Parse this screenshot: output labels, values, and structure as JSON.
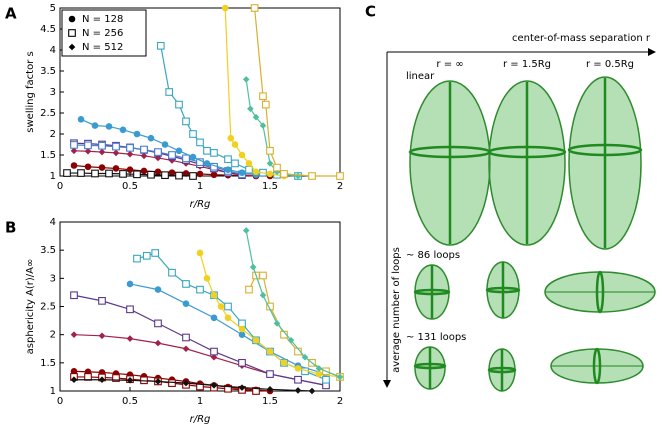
{
  "chart_data": [
    {
      "type": "line",
      "panel": "A",
      "ylabel": "swelling factor s",
      "xlabel": "r/Rg",
      "xlim": [
        0,
        2
      ],
      "xticks": [
        0,
        0.5,
        1,
        1.5,
        2
      ],
      "ylim": [
        1,
        5
      ],
      "yticks": [
        1,
        1.5,
        2,
        2.5,
        3,
        3.5,
        4,
        4.5,
        5
      ],
      "legend": [
        {
          "label": "N = 128",
          "marker": "circle"
        },
        {
          "label": "N = 256",
          "marker": "square"
        },
        {
          "label": "N = 512",
          "marker": "diamond"
        }
      ],
      "series": [
        {
          "color": "#8b0000",
          "marker": "circle",
          "x": [
            0.1,
            0.2,
            0.3,
            0.4,
            0.5,
            0.6,
            0.7,
            0.8,
            0.9,
            1.0,
            1.1,
            1.2,
            1.3,
            1.4,
            1.5
          ],
          "values": [
            1.25,
            1.22,
            1.2,
            1.18,
            1.15,
            1.12,
            1.1,
            1.08,
            1.06,
            1.05,
            1.03,
            1.02,
            1.01,
            1.0,
            1.0
          ]
        },
        {
          "color": "#111111",
          "marker": "square",
          "x": [
            0.05,
            0.15,
            0.25,
            0.35,
            0.45,
            0.55,
            0.65,
            0.75,
            0.85,
            0.95
          ],
          "values": [
            1.07,
            1.07,
            1.06,
            1.06,
            1.05,
            1.04,
            1.03,
            1.02,
            1.01,
            1.0
          ]
        },
        {
          "color": "#a0224a",
          "marker": "diamond",
          "x": [
            0.1,
            0.2,
            0.3,
            0.4,
            0.5,
            0.6,
            0.7,
            0.8,
            0.9,
            1.0,
            1.1,
            1.2,
            1.3,
            1.4
          ],
          "values": [
            1.6,
            1.59,
            1.57,
            1.55,
            1.52,
            1.48,
            1.43,
            1.37,
            1.3,
            1.23,
            1.15,
            1.08,
            1.03,
            1.0
          ]
        },
        {
          "color": "#5b3a8c",
          "marker": "square",
          "x": [
            0.1,
            0.2,
            0.3,
            0.4,
            0.5,
            0.6,
            0.7,
            0.8,
            0.9,
            1.0,
            1.1,
            1.2,
            1.3
          ],
          "values": [
            1.78,
            1.77,
            1.75,
            1.72,
            1.68,
            1.62,
            1.55,
            1.47,
            1.38,
            1.28,
            1.18,
            1.08,
            1.02
          ]
        },
        {
          "color": "#4a7fd0",
          "marker": "square",
          "x": [
            0.1,
            0.2,
            0.3,
            0.4,
            0.5,
            0.6,
            0.7,
            0.8,
            0.9,
            1.0,
            1.1,
            1.2,
            1.3
          ],
          "values": [
            1.74,
            1.73,
            1.72,
            1.7,
            1.67,
            1.63,
            1.57,
            1.5,
            1.42,
            1.33,
            1.22,
            1.12,
            1.04
          ]
        },
        {
          "color": "#3a9bd0",
          "marker": "circle",
          "x": [
            0.15,
            0.25,
            0.35,
            0.45,
            0.55,
            0.65,
            0.75,
            0.85,
            0.95,
            1.05,
            1.2,
            1.3,
            1.4
          ],
          "values": [
            2.35,
            2.2,
            2.18,
            2.1,
            2.0,
            1.9,
            1.75,
            1.6,
            1.45,
            1.3,
            1.15,
            1.08,
            1.03
          ]
        },
        {
          "color": "#3aa6c0",
          "marker": "square",
          "x": [
            0.72,
            0.78,
            0.85,
            0.9,
            0.95,
            1.0,
            1.05,
            1.1,
            1.2,
            1.25,
            1.35,
            1.45,
            1.55,
            1.7
          ],
          "values": [
            4.1,
            3.0,
            2.7,
            2.3,
            2.0,
            1.8,
            1.6,
            1.55,
            1.4,
            1.3,
            1.15,
            1.08,
            1.03,
            1.0
          ]
        },
        {
          "color": "#f0d020",
          "marker": "circle",
          "x": [
            1.18,
            1.22,
            1.25,
            1.3,
            1.35,
            1.4,
            1.5,
            1.6
          ],
          "values": [
            5,
            1.9,
            1.75,
            1.5,
            1.3,
            1.1,
            1.05,
            1.0
          ]
        },
        {
          "color": "#4fbf9f",
          "marker": "diamond",
          "x": [
            1.33,
            1.36,
            1.4,
            1.45,
            1.5,
            1.55,
            1.7
          ],
          "values": [
            3.3,
            2.6,
            2.4,
            2.2,
            1.3,
            1.1,
            1.0
          ]
        },
        {
          "color": "#d8b030",
          "marker": "square",
          "x": [
            1.39,
            1.45,
            1.47,
            1.5,
            1.55,
            1.6,
            1.8,
            2.0
          ],
          "values": [
            5,
            2.9,
            2.7,
            1.6,
            1.2,
            1.05,
            1.0,
            1.0
          ]
        }
      ]
    },
    {
      "type": "line",
      "panel": "B",
      "ylabel": "asphericity A(r)/A∞",
      "xlabel": "r/Rg",
      "xlim": [
        0,
        2
      ],
      "xticks": [
        0,
        0.5,
        1,
        1.5,
        2
      ],
      "ylim": [
        1,
        4
      ],
      "yticks": [
        1,
        1.5,
        2,
        2.5,
        3,
        3.5,
        4
      ],
      "series": [
        {
          "color": "#8b0000",
          "marker": "circle",
          "x": [
            0.1,
            0.2,
            0.3,
            0.4,
            0.5,
            0.6,
            0.7,
            0.8,
            0.9,
            1.0,
            1.1,
            1.2,
            1.3,
            1.4,
            1.5
          ],
          "values": [
            1.35,
            1.34,
            1.33,
            1.31,
            1.29,
            1.26,
            1.23,
            1.2,
            1.17,
            1.13,
            1.1,
            1.07,
            1.04,
            1.02,
            1.0
          ]
        },
        {
          "color": "#8b0000",
          "marker": "square",
          "x": [
            0.1,
            0.2,
            0.3,
            0.4,
            0.5,
            0.6,
            0.7,
            0.8,
            0.9,
            1.0,
            1.1,
            1.2,
            1.3,
            1.4
          ],
          "values": [
            1.25,
            1.25,
            1.24,
            1.23,
            1.21,
            1.19,
            1.17,
            1.14,
            1.11,
            1.08,
            1.06,
            1.04,
            1.02,
            1.0
          ]
        },
        {
          "color": "#111111",
          "marker": "diamond",
          "x": [
            0.1,
            0.3,
            0.5,
            0.7,
            0.9,
            1.1,
            1.3,
            1.5,
            1.7,
            1.8
          ],
          "values": [
            1.2,
            1.2,
            1.19,
            1.17,
            1.14,
            1.1,
            1.06,
            1.03,
            1.01,
            1.0
          ]
        },
        {
          "color": "#a0224a",
          "marker": "diamond",
          "x": [
            0.1,
            0.3,
            0.5,
            0.7,
            0.9,
            1.1,
            1.3,
            1.5,
            1.7,
            1.9
          ],
          "values": [
            2.0,
            1.98,
            1.93,
            1.85,
            1.75,
            1.6,
            1.45,
            1.3,
            1.2,
            1.1
          ]
        },
        {
          "color": "#5b3a8c",
          "marker": "square",
          "x": [
            0.1,
            0.3,
            0.5,
            0.7,
            0.9,
            1.1,
            1.3,
            1.5,
            1.7,
            1.9
          ],
          "values": [
            2.7,
            2.6,
            2.45,
            2.2,
            1.95,
            1.7,
            1.5,
            1.3,
            1.2,
            1.1
          ]
        },
        {
          "color": "#3a9bd0",
          "marker": "circle",
          "x": [
            0.5,
            0.7,
            0.9,
            1.1,
            1.3,
            1.5,
            1.7,
            1.9
          ],
          "values": [
            2.9,
            2.8,
            2.55,
            2.3,
            2.0,
            1.7,
            1.45,
            1.3
          ]
        },
        {
          "color": "#3aa6c0",
          "marker": "square",
          "x": [
            0.55,
            0.62,
            0.68,
            0.8,
            0.9,
            1.0,
            1.1,
            1.2,
            1.3,
            1.4,
            1.5,
            1.6,
            1.75,
            1.9
          ],
          "values": [
            3.35,
            3.4,
            3.45,
            3.1,
            2.9,
            2.8,
            2.7,
            2.5,
            2.2,
            1.9,
            1.7,
            1.5,
            1.35,
            1.2
          ]
        },
        {
          "color": "#f0d020",
          "marker": "circle",
          "x": [
            1.0,
            1.05,
            1.1,
            1.15,
            1.2,
            1.3,
            1.4,
            1.5,
            1.6,
            1.7,
            1.85,
            2.0
          ],
          "values": [
            3.45,
            3.0,
            2.7,
            2.5,
            2.3,
            2.1,
            1.9,
            1.7,
            1.5,
            1.4,
            1.3,
            1.25
          ]
        },
        {
          "color": "#d8b030",
          "marker": "square",
          "x": [
            1.35,
            1.4,
            1.45,
            1.5,
            1.6,
            1.7,
            1.8,
            1.9,
            2.0
          ],
          "values": [
            2.8,
            3.05,
            3.05,
            2.5,
            2.0,
            1.7,
            1.5,
            1.35,
            1.25
          ]
        },
        {
          "color": "#4fbf9f",
          "marker": "diamond",
          "x": [
            1.33,
            1.38,
            1.45,
            1.55,
            1.65,
            1.75,
            1.85,
            2.0
          ],
          "values": [
            3.85,
            3.2,
            2.7,
            2.2,
            1.9,
            1.6,
            1.4,
            1.25
          ]
        }
      ]
    }
  ],
  "diagram": {
    "panel": "C",
    "xaxis": "center-of-mass separation r",
    "yaxis": "average number of loops",
    "columns": [
      "r = ∞",
      "r = 1.5Rg",
      "r = 0.5Rg"
    ],
    "rows": [
      "linear",
      "~ 86 loops",
      "~ 131 loops"
    ]
  }
}
